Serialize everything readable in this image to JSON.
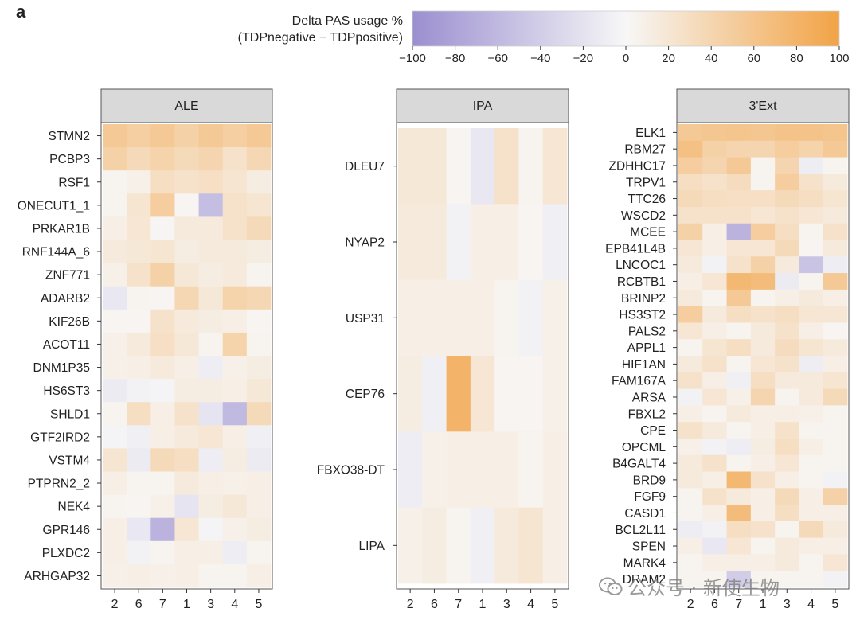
{
  "figure": {
    "panel_label": "a",
    "watermark": {
      "text": "公众号 · 新使生物",
      "icon": "wechat-logo-icon"
    }
  },
  "chart_data": {
    "type": "heatmap",
    "color_scale": {
      "title_line1": "Delta PAS usage %",
      "title_line2": "(TDPnegative − TDPpositive)",
      "min": -100,
      "max": 100,
      "ticks": [
        "−100",
        "−80",
        "−60",
        "−40",
        "−20",
        "0",
        "20",
        "40",
        "60",
        "80",
        "100"
      ],
      "tick_values": [
        -100,
        -80,
        -60,
        -40,
        -20,
        0,
        20,
        40,
        60,
        80,
        100
      ],
      "low_color": "#9b8fd0",
      "mid_color": "#f7f7f7",
      "high_color": "#f2a345"
    },
    "x_categories": [
      "2",
      "6",
      "7",
      "1",
      "3",
      "4",
      "5"
    ],
    "panels": [
      {
        "title": "ALE",
        "genes": [
          "STMN2",
          "PCBP3",
          "RSF1",
          "ONECUT1_1",
          "PRKAR1B",
          "RNF144A_6",
          "ZNF771",
          "ADARB2",
          "KIF26B",
          "ACOT11",
          "DNM1P35",
          "HS6ST3",
          "SHLD1",
          "GTF2IRD2",
          "VSTM4",
          "PTPRN2_2",
          "NEK4",
          "GPR146",
          "PLXDC2",
          "ARHGAP32"
        ],
        "values": [
          [
            55,
            48,
            55,
            45,
            55,
            48,
            55
          ],
          [
            45,
            35,
            42,
            35,
            40,
            25,
            38
          ],
          [
            5,
            8,
            30,
            25,
            28,
            22,
            12
          ],
          [
            5,
            22,
            50,
            3,
            -55,
            25,
            22
          ],
          [
            10,
            20,
            2,
            15,
            15,
            25,
            35
          ],
          [
            15,
            18,
            22,
            12,
            15,
            15,
            12
          ],
          [
            8,
            25,
            45,
            18,
            12,
            15,
            5
          ],
          [
            -15,
            5,
            3,
            38,
            18,
            42,
            38
          ],
          [
            3,
            3,
            25,
            15,
            12,
            10,
            3
          ],
          [
            8,
            15,
            28,
            18,
            5,
            42,
            5
          ],
          [
            8,
            10,
            15,
            10,
            -10,
            8,
            12
          ],
          [
            -12,
            -5,
            -3,
            12,
            12,
            10,
            18
          ],
          [
            5,
            30,
            10,
            25,
            -18,
            -60,
            35
          ],
          [
            -3,
            -8,
            10,
            15,
            20,
            10,
            -8
          ],
          [
            22,
            -12,
            35,
            30,
            -10,
            12,
            -12
          ],
          [
            10,
            5,
            5,
            15,
            10,
            8,
            10
          ],
          [
            5,
            3,
            8,
            -18,
            12,
            18,
            10
          ],
          [
            10,
            -15,
            -65,
            20,
            -3,
            8,
            12
          ],
          [
            10,
            -5,
            5,
            10,
            10,
            -10,
            5
          ],
          [
            8,
            10,
            8,
            10,
            5,
            5,
            10
          ]
        ]
      },
      {
        "title": "IPA",
        "genes": [
          "DLEU7",
          "NYAP2",
          "USP31",
          "CEP76",
          "FBXO38-DT",
          "LIPA"
        ],
        "values": [
          [
            18,
            18,
            3,
            -15,
            25,
            5,
            20
          ],
          [
            15,
            15,
            -5,
            10,
            10,
            3,
            -8
          ],
          [
            10,
            10,
            10,
            10,
            5,
            -5,
            8
          ],
          [
            12,
            -8,
            80,
            20,
            3,
            3,
            8
          ],
          [
            -10,
            8,
            10,
            10,
            10,
            5,
            10
          ],
          [
            8,
            12,
            5,
            -8,
            15,
            22,
            10
          ]
        ]
      },
      {
        "title": "3'Ext",
        "genes": [
          "ELK1",
          "RBM27",
          "ZDHHC17",
          "TRPV1",
          "TTC26",
          "WSCD2",
          "MCEE",
          "EPB41L4B",
          "LNCOC1",
          "RCBTB1",
          "BRINP2",
          "HS3ST2",
          "PALS2",
          "APPL1",
          "HIF1AN",
          "FAM167A",
          "ARSA",
          "FBXL2",
          "CPE",
          "OPCML",
          "B4GALT4",
          "BRD9",
          "FGF9",
          "CASD1",
          "BCL2L11",
          "SPEN",
          "MARK4",
          "DRAM2"
        ],
        "values": [
          [
            55,
            58,
            60,
            58,
            62,
            62,
            60
          ],
          [
            65,
            45,
            40,
            40,
            50,
            42,
            55
          ],
          [
            50,
            40,
            55,
            5,
            40,
            -10,
            5
          ],
          [
            30,
            25,
            32,
            5,
            50,
            25,
            15
          ],
          [
            35,
            30,
            28,
            28,
            35,
            30,
            22
          ],
          [
            25,
            25,
            25,
            20,
            25,
            20,
            15
          ],
          [
            45,
            10,
            -65,
            50,
            30,
            5,
            25
          ],
          [
            20,
            10,
            20,
            20,
            35,
            3,
            15
          ],
          [
            15,
            -5,
            25,
            45,
            15,
            -50,
            -10
          ],
          [
            10,
            20,
            75,
            70,
            -12,
            5,
            55
          ],
          [
            15,
            5,
            55,
            5,
            10,
            15,
            10
          ],
          [
            50,
            15,
            30,
            25,
            30,
            20,
            20
          ],
          [
            20,
            10,
            5,
            15,
            25,
            10,
            3
          ],
          [
            5,
            22,
            30,
            15,
            32,
            22,
            15
          ],
          [
            15,
            25,
            5,
            20,
            25,
            -10,
            10
          ],
          [
            25,
            10,
            -8,
            30,
            15,
            15,
            22
          ],
          [
            -5,
            20,
            8,
            40,
            5,
            15,
            35
          ],
          [
            10,
            5,
            15,
            10,
            10,
            8,
            5
          ],
          [
            25,
            15,
            5,
            10,
            25,
            5,
            5
          ],
          [
            8,
            -5,
            -10,
            12,
            30,
            10,
            5
          ],
          [
            15,
            25,
            5,
            10,
            20,
            5,
            5
          ],
          [
            15,
            10,
            75,
            25,
            10,
            5,
            -5
          ],
          [
            5,
            25,
            15,
            10,
            35,
            10,
            45
          ],
          [
            5,
            10,
            70,
            10,
            30,
            10,
            10
          ],
          [
            -10,
            -5,
            30,
            25,
            5,
            35,
            15
          ],
          [
            10,
            -15,
            20,
            5,
            15,
            10,
            10
          ],
          [
            5,
            10,
            10,
            10,
            15,
            5,
            20
          ],
          [
            5,
            5,
            -40,
            5,
            5,
            5,
            -5
          ]
        ]
      }
    ]
  }
}
